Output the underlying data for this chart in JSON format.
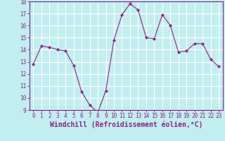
{
  "x": [
    0,
    1,
    2,
    3,
    4,
    5,
    6,
    7,
    8,
    9,
    10,
    11,
    12,
    13,
    14,
    15,
    16,
    17,
    18,
    19,
    20,
    21,
    22,
    23
  ],
  "y": [
    12.8,
    14.3,
    14.2,
    14.0,
    13.9,
    12.7,
    10.5,
    9.4,
    8.8,
    10.6,
    14.8,
    16.9,
    17.8,
    17.3,
    15.0,
    14.9,
    16.9,
    16.0,
    13.8,
    13.9,
    14.5,
    14.5,
    13.2,
    12.6
  ],
  "line_color": "#882288",
  "marker": "D",
  "marker_size": 2,
  "bg_color": "#C2EEF0",
  "grid_color": "#aadddd",
  "xlim_min": -0.5,
  "xlim_max": 23.5,
  "ylim_min": 9,
  "ylim_max": 18,
  "yticks": [
    9,
    10,
    11,
    12,
    13,
    14,
    15,
    16,
    17,
    18
  ],
  "xticks": [
    0,
    1,
    2,
    3,
    4,
    5,
    6,
    7,
    8,
    9,
    10,
    11,
    12,
    13,
    14,
    15,
    16,
    17,
    18,
    19,
    20,
    21,
    22,
    23
  ],
  "tick_label_fontsize": 5.5,
  "xlabel": "Windchill (Refroidissement éolien,°C)",
  "xlabel_fontsize": 7.0
}
